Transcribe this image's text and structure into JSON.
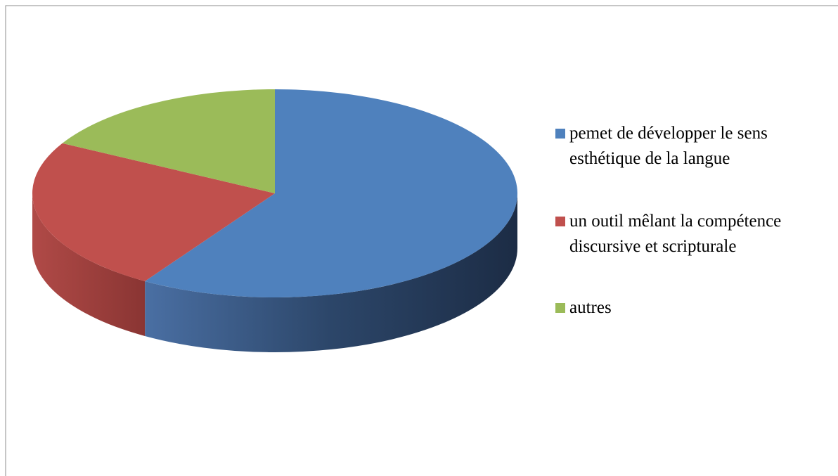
{
  "chart_data": {
    "type": "pie",
    "categories": [
      "pemet de développer le sens esthétique de la langue",
      "un outil mêlant la compétence discursive et scripturale",
      "autres"
    ],
    "values": [
      59,
      24,
      17
    ],
    "colors": [
      "#4f81bd",
      "#c0504d",
      "#9bbb59"
    ],
    "legend": "right"
  }
}
